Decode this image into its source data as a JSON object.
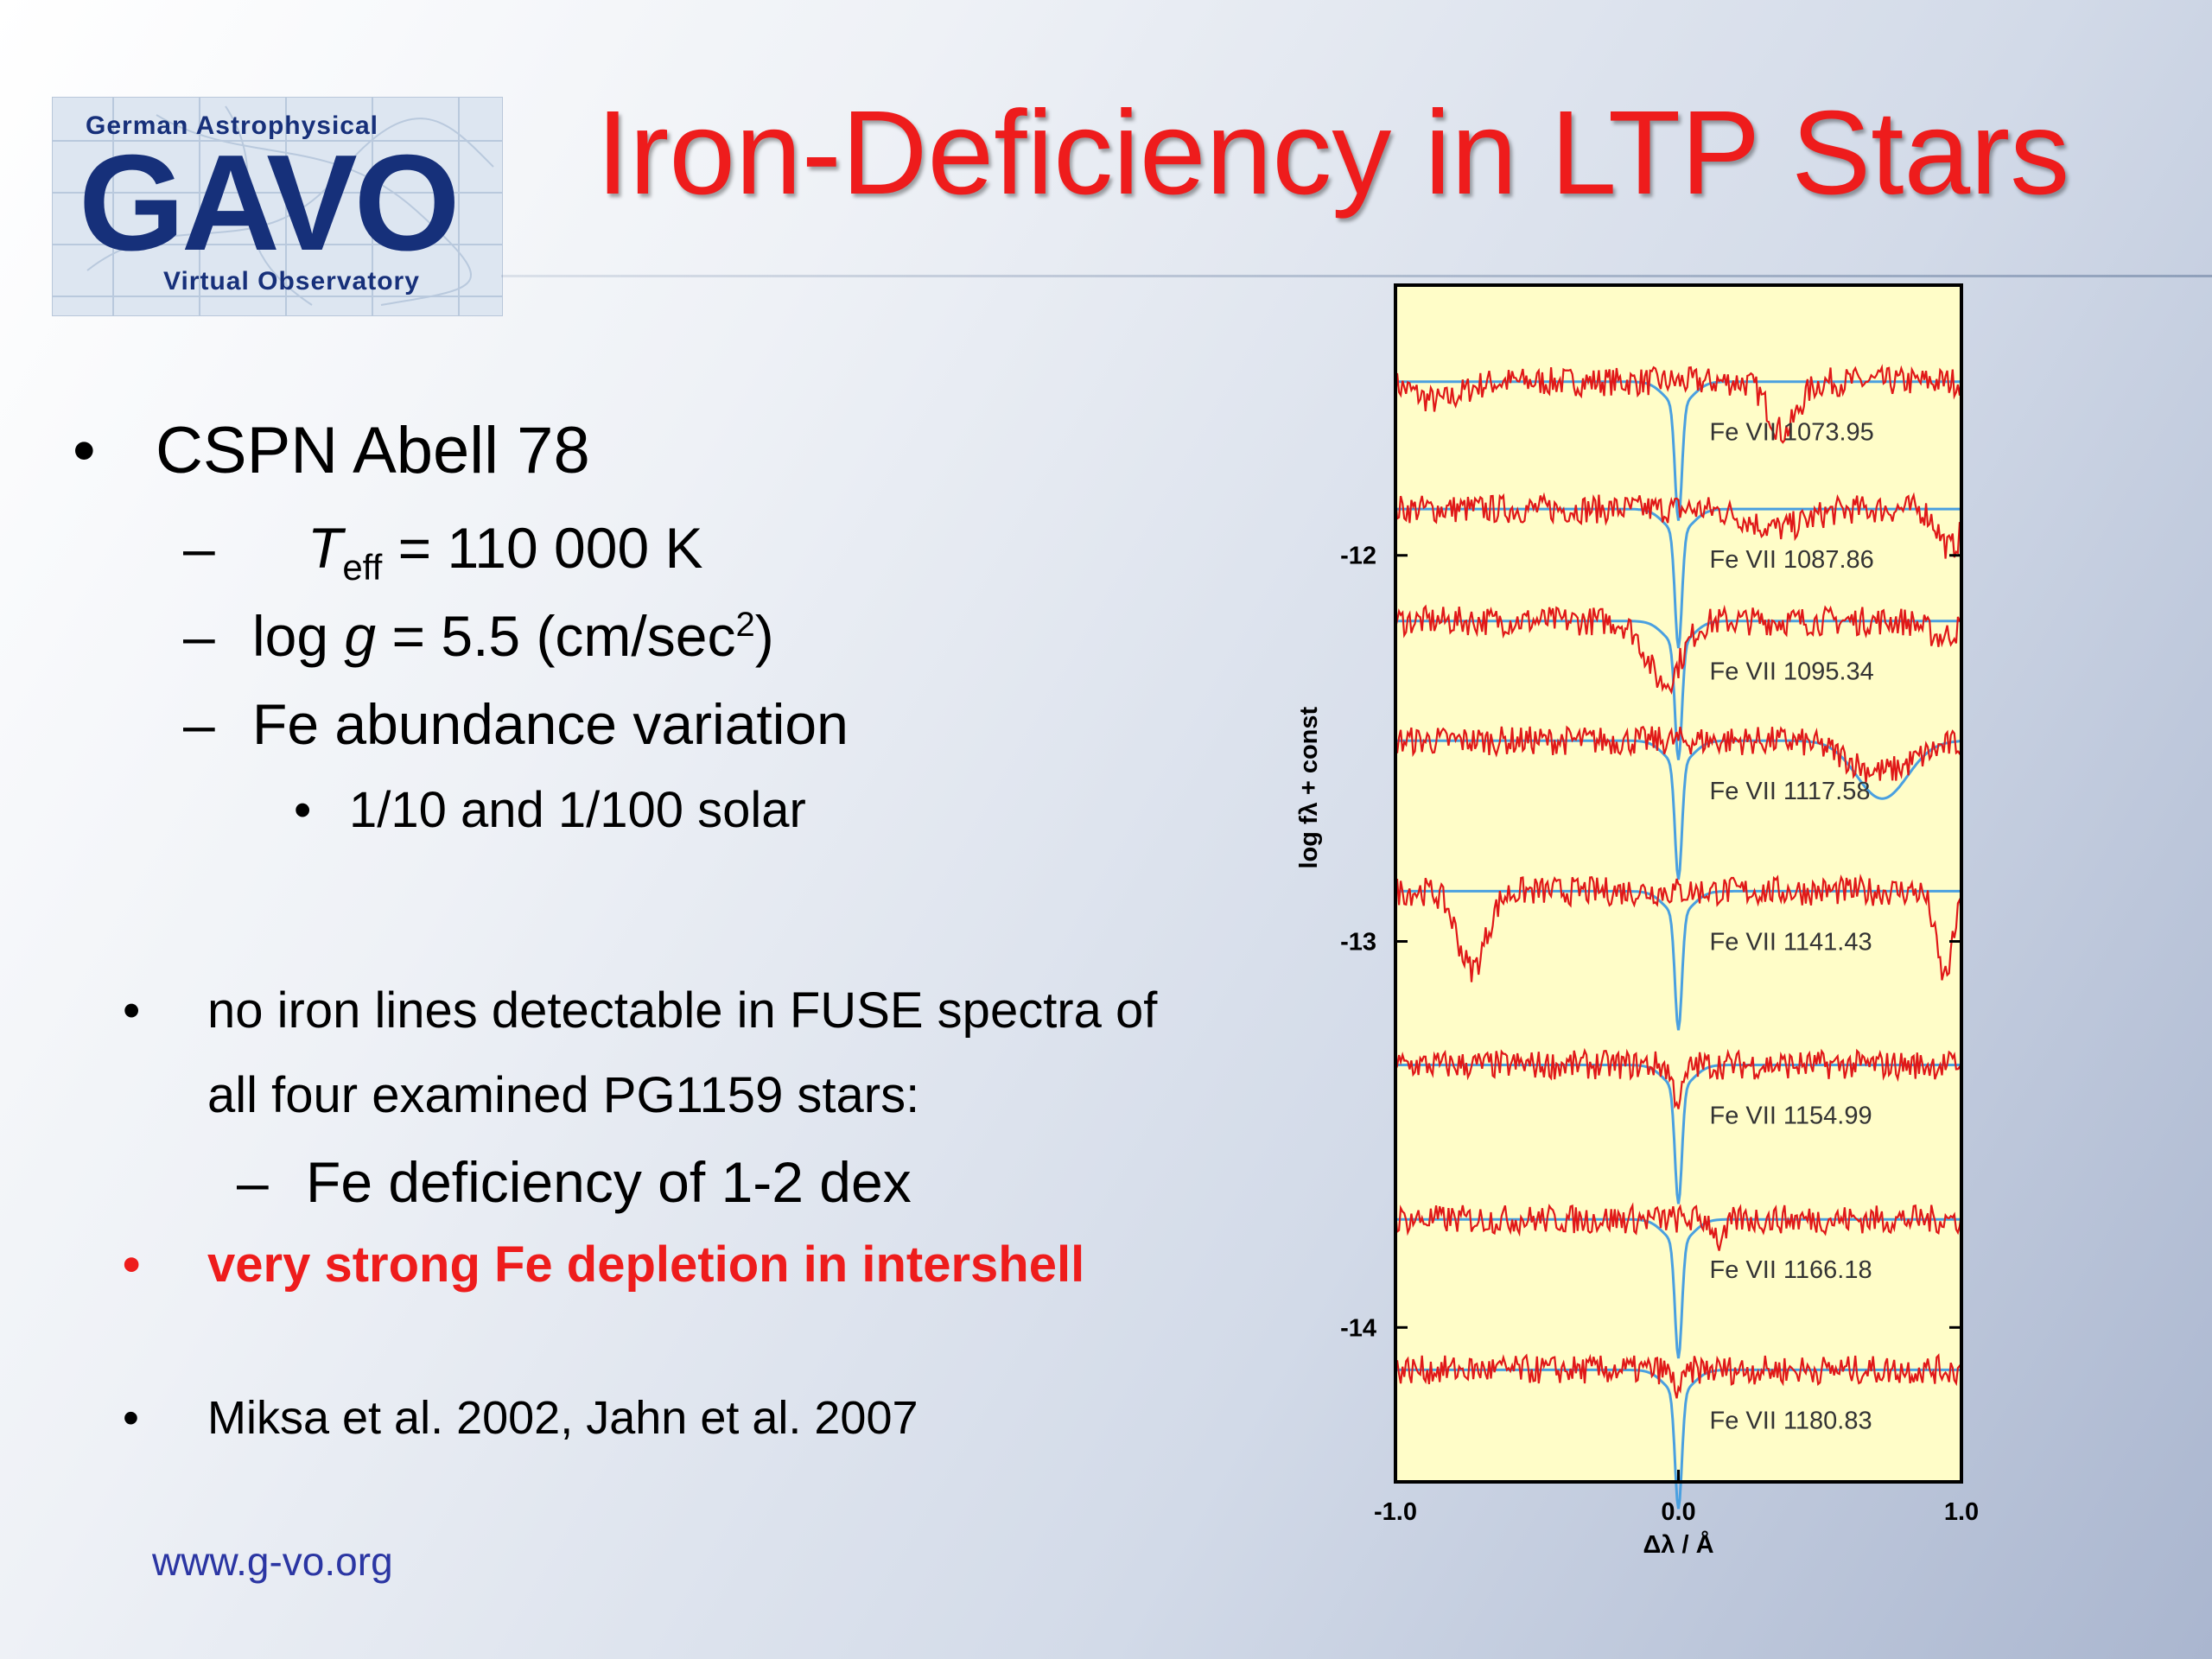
{
  "logo": {
    "top": "German Astrophysical",
    "main": "GAVO",
    "bottom": "Virtual Observatory"
  },
  "title": "Iron-Deficiency in LTP Stars",
  "bullets": {
    "b1": {
      "bullet": "•",
      "text": "CSPN Abell 78",
      "sub1": {
        "dash": "–",
        "symbol": "T",
        "subscript": "eff",
        "rest": " = 110 000 K"
      },
      "sub2": {
        "dash": "–",
        "pre": "log ",
        "symbol": "g",
        "rest": " = 5.5 (cm/sec",
        "sup": "2",
        "close": ")"
      },
      "sub3": {
        "dash": "–",
        "text": "Fe abundance variation"
      },
      "sub3a": {
        "bullet": "•",
        "text": "1/10 and 1/100 solar"
      }
    },
    "b2": {
      "bullet": "•",
      "line1": "no iron lines detectable in FUSE spectra of",
      "line2": "all four examined PG1159 stars:",
      "sub": {
        "dash": "–",
        "text": "Fe deficiency of 1-2 dex"
      }
    },
    "b3": {
      "bullet": "•",
      "text": "very strong Fe depletion in intershell"
    },
    "b4": {
      "bullet": "•",
      "text": "Miksa et al. 2002, Jahn et al. 2007"
    }
  },
  "footer_url": "www.g-vo.org",
  "chart_data": {
    "type": "line",
    "xlabel": "Δλ / Å",
    "ylabel": "log fλ + const",
    "xlim": [
      -1.0,
      1.0
    ],
    "ylim": [
      -14.4,
      -11.3
    ],
    "x_ticks": [
      "-1.0",
      "0.0",
      "1.0"
    ],
    "y_ticks": [
      {
        "value": -12,
        "label": "-12"
      },
      {
        "value": -13,
        "label": "-13"
      },
      {
        "value": -14,
        "label": "-14"
      }
    ],
    "background": "#fffdc8",
    "series_colors": {
      "observed": "#e01818",
      "model": "#4aa0e0"
    },
    "panels": [
      {
        "label": "Fe VII 1073.95",
        "offset": -11.55,
        "absorptions": [
          [
            0.37,
            0.13,
            0.05
          ],
          [
            -0.85,
            0.05,
            0.08
          ]
        ]
      },
      {
        "label": "Fe VII 1087.86",
        "offset": -11.88,
        "absorptions": [
          [
            0.35,
            0.05,
            0.1
          ],
          [
            0.96,
            0.1,
            0.04
          ]
        ]
      },
      {
        "label": "Fe VII 1095.34",
        "offset": -12.17,
        "absorptions": [
          [
            -0.05,
            0.16,
            0.06
          ],
          [
            0.93,
            0.04,
            0.05
          ]
        ]
      },
      {
        "label": "Fe VII 1117.58",
        "offset": -12.48,
        "absorptions": [
          [
            0.72,
            0.08,
            0.12
          ]
        ],
        "model_dip": [
          0.72,
          0.09,
          0.15
        ]
      },
      {
        "label": "Fe VII 1141.43",
        "offset": -12.87,
        "absorptions": [
          [
            -0.73,
            0.2,
            0.05
          ],
          [
            0.94,
            0.22,
            0.03
          ]
        ]
      },
      {
        "label": "Fe VII 1154.99",
        "offset": -13.32,
        "absorptions": [
          [
            0.0,
            0.09,
            0.02
          ]
        ]
      },
      {
        "label": "Fe VII 1166.18",
        "offset": -13.72,
        "absorptions": [
          [
            0.15,
            0.06,
            0.02
          ]
        ]
      },
      {
        "label": "Fe VII 1180.83",
        "offset": -14.11,
        "absorptions": [
          [
            0.0,
            0.05,
            0.02
          ]
        ]
      }
    ],
    "model_line_depth": 0.3
  }
}
